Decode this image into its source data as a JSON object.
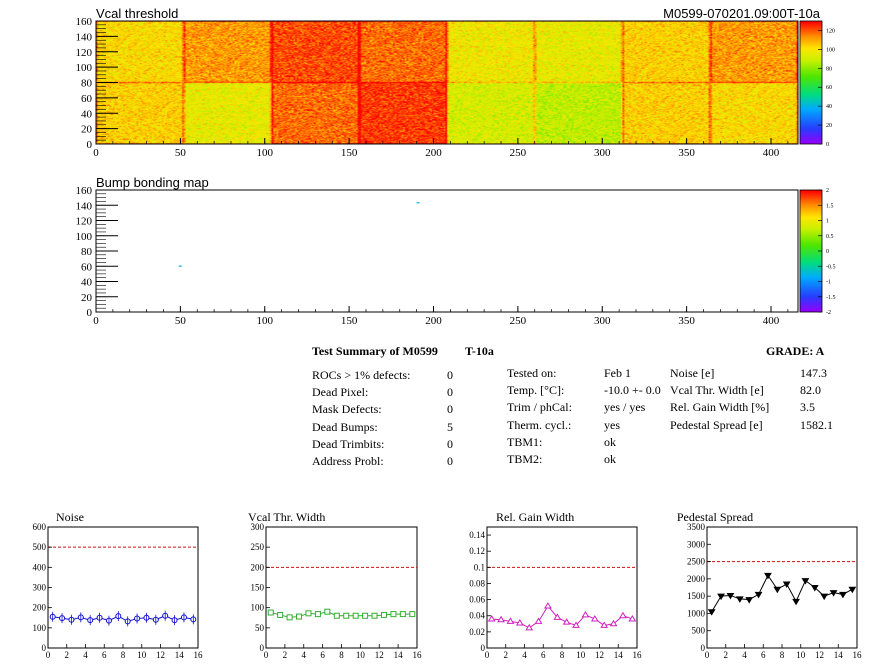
{
  "module_id": "M0599-070201.09:00T-10a",
  "heatmap": {
    "title": "Vcal threshold",
    "x_ticks": [
      0,
      50,
      100,
      150,
      200,
      250,
      300,
      350,
      400
    ],
    "y_ticks": [
      0,
      20,
      40,
      60,
      80,
      100,
      120,
      140,
      160
    ],
    "xlim": [
      0,
      416
    ],
    "ylim": [
      0,
      160
    ],
    "palette_labels": [
      0,
      20,
      40,
      60,
      80,
      100,
      120
    ]
  },
  "bump": {
    "title": "Bump bonding map",
    "x_ticks": [
      0,
      50,
      100,
      150,
      200,
      250,
      300,
      350,
      400
    ],
    "y_ticks": [
      0,
      20,
      40,
      60,
      80,
      100,
      120,
      140,
      160
    ],
    "palette_labels": [
      "2",
      "1.5",
      "1",
      "0.5",
      "0",
      "-0.5",
      "-1",
      "-1.5",
      "-2"
    ]
  },
  "summary": {
    "title": "Test Summary of M0599",
    "temp_label": "T-10a",
    "grade": "GRADE:  A",
    "defects": [
      {
        "label": "ROCs > 1% defects:",
        "value": "0"
      },
      {
        "label": "Dead Pixel:",
        "value": "0"
      },
      {
        "label": "Mask Defects:",
        "value": "0"
      },
      {
        "label": "Dead Bumps:",
        "value": "5"
      },
      {
        "label": "Dead Trimbits:",
        "value": "0"
      },
      {
        "label": "Address Probl:",
        "value": "0"
      }
    ],
    "conditions": [
      {
        "label": "Tested on:",
        "value": "Feb 1"
      },
      {
        "label": "Temp. [°C]:",
        "value": "-10.0 +- 0.0"
      },
      {
        "label": "Trim / phCal:",
        "value": "yes / yes"
      },
      {
        "label": "Therm. cycl.:",
        "value": "yes"
      },
      {
        "label": "TBM1:",
        "value": "ok"
      },
      {
        "label": "TBM2:",
        "value": "ok"
      }
    ],
    "results": [
      {
        "label": "Noise [e]",
        "value": "147.3"
      },
      {
        "label": "Vcal Thr. Width [e]",
        "value": "82.0"
      },
      {
        "label": "Rel. Gain Width [%]",
        "value": "3.5"
      },
      {
        "label": "Pedestal Spread [e]",
        "value": "1582.1"
      }
    ]
  },
  "chart_data": [
    {
      "type": "heatmap",
      "title": "Vcal threshold",
      "xlim": [
        0,
        416
      ],
      "ylim": [
        0,
        160
      ],
      "zlim": [
        0,
        130
      ],
      "note_rocs": "16 ROC tiles, 2 rows x 8 columns, mean threshold per ROC",
      "roc_means": [
        [
          102,
          112,
          122,
          118,
          98,
          96,
          104,
          112
        ],
        [
          104,
          96,
          118,
          124,
          92,
          88,
          104,
          102
        ]
      ]
    },
    {
      "type": "heatmap",
      "title": "Bump bonding map",
      "xlim": [
        0,
        416
      ],
      "ylim": [
        0,
        160
      ],
      "zlim": [
        -2,
        2
      ],
      "points": [
        {
          "x": 190,
          "y": 144
        },
        {
          "x": 49,
          "y": 61
        }
      ]
    },
    {
      "type": "scatter",
      "title": "Noise",
      "x": [
        0,
        1,
        2,
        3,
        4,
        5,
        6,
        7,
        8,
        9,
        10,
        11,
        12,
        13,
        14,
        15
      ],
      "values": [
        155,
        148,
        140,
        152,
        138,
        150,
        136,
        158,
        132,
        146,
        150,
        140,
        160,
        138,
        152,
        142
      ],
      "xlim": [
        0,
        16
      ],
      "ylim": [
        0,
        600
      ],
      "x_ticks": [
        0,
        2,
        4,
        6,
        8,
        10,
        12,
        14,
        16
      ],
      "y_ticks": [
        0,
        100,
        200,
        300,
        400,
        500,
        600
      ],
      "threshold": 500,
      "color": "#1010d0",
      "marker": "circle"
    },
    {
      "type": "scatter",
      "title": "Vcal Thr. Width",
      "x": [
        0,
        1,
        2,
        3,
        4,
        5,
        6,
        7,
        8,
        9,
        10,
        11,
        12,
        13,
        14,
        15
      ],
      "values": [
        88,
        82,
        76,
        78,
        86,
        84,
        90,
        80,
        80,
        80,
        80,
        80,
        82,
        84,
        84,
        84
      ],
      "xlim": [
        0,
        16
      ],
      "ylim": [
        0,
        300
      ],
      "x_ticks": [
        0,
        2,
        4,
        6,
        8,
        10,
        12,
        14,
        16
      ],
      "y_ticks": [
        0,
        50,
        100,
        150,
        200,
        250,
        300
      ],
      "threshold": 200,
      "color": "#30b030",
      "marker": "square"
    },
    {
      "type": "line",
      "title": "Rel. Gain Width",
      "x": [
        0,
        1,
        2,
        3,
        4,
        5,
        6,
        7,
        8,
        9,
        10,
        11,
        12,
        13,
        14,
        15
      ],
      "values": [
        0.036,
        0.035,
        0.033,
        0.031,
        0.025,
        0.033,
        0.052,
        0.038,
        0.032,
        0.028,
        0.041,
        0.036,
        0.028,
        0.03,
        0.04,
        0.036
      ],
      "xlim": [
        0,
        16
      ],
      "ylim": [
        0,
        0.15
      ],
      "x_ticks": [
        0,
        2,
        4,
        6,
        8,
        10,
        12,
        14,
        16
      ],
      "y_ticks": [
        0,
        0.02,
        0.04,
        0.06,
        0.08,
        0.1,
        0.12,
        0.14
      ],
      "threshold": 0.1,
      "color": "#d020c0",
      "marker": "triangle"
    },
    {
      "type": "line",
      "title": "Pedestal Spread",
      "x": [
        0,
        1,
        2,
        3,
        4,
        5,
        6,
        7,
        8,
        9,
        10,
        11,
        12,
        13,
        14,
        15
      ],
      "values": [
        1050,
        1500,
        1520,
        1420,
        1400,
        1550,
        2100,
        1700,
        1850,
        1350,
        1950,
        1750,
        1500,
        1600,
        1550,
        1700
      ],
      "xlim": [
        0,
        16
      ],
      "ylim": [
        0,
        3500
      ],
      "x_ticks": [
        0,
        2,
        4,
        6,
        8,
        10,
        12,
        14,
        16
      ],
      "y_ticks": [
        0,
        500,
        1000,
        1500,
        2000,
        2500,
        3000,
        3500
      ],
      "threshold": 2500,
      "color": "#000000",
      "marker": "triangle-down"
    }
  ]
}
